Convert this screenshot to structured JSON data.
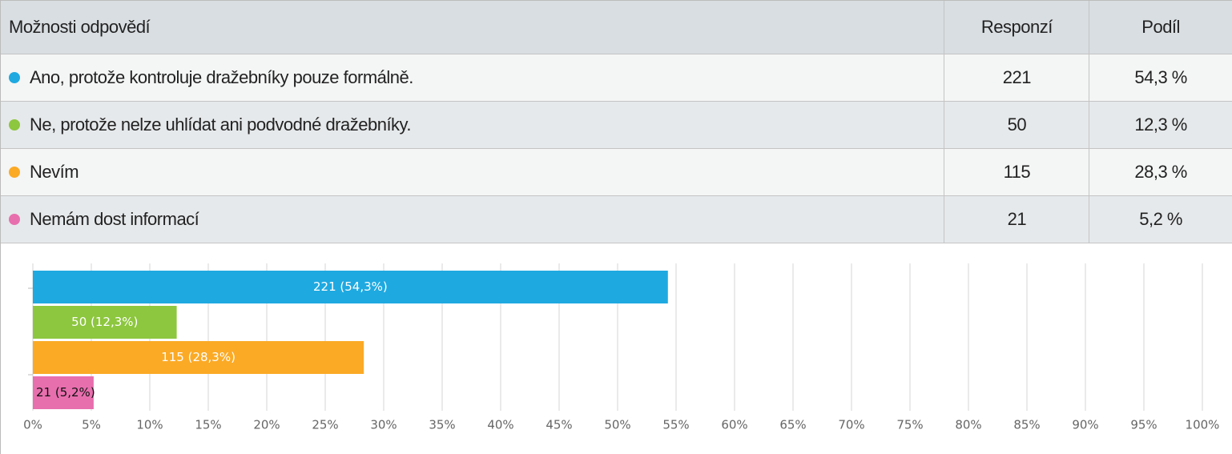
{
  "table": {
    "header": [
      "Možnosti odpovědí",
      "Responzí",
      "Podíl"
    ],
    "rows": [
      [
        "Ano, protože kontroluje dražebníky pouze formálně.",
        "221",
        "54,3 %"
      ],
      [
        "Ne, protože nelze uhlídat ani podvodné dražebníky.",
        "50",
        "12,3 %"
      ],
      [
        "Nevím",
        "115",
        "28,3 %"
      ],
      [
        "Nemám dost informací",
        "21",
        "5,2 %"
      ]
    ]
  },
  "chart_data": {
    "type": "bar",
    "orientation": "horizontal",
    "values": [
      54.3,
      12.3,
      28.3,
      5.2
    ],
    "value_labels": [
      "221 (54,3%)",
      "50 (12,3%)",
      "115 (28,3%)",
      "21 (5,2%)"
    ],
    "colors": [
      "#1ea9e1",
      "#8dc63f",
      "#fbaa26",
      "#e86fae"
    ],
    "xlim": [
      0,
      100
    ],
    "xticks": [
      {
        "value": 0,
        "label": "0%"
      },
      {
        "value": 5,
        "label": "5%"
      },
      {
        "value": 10,
        "label": "10%"
      },
      {
        "value": 15,
        "label": "15%"
      },
      {
        "value": 20,
        "label": "20%"
      },
      {
        "value": 25,
        "label": "25%"
      },
      {
        "value": 30,
        "label": "30%"
      },
      {
        "value": 35,
        "label": "35%"
      },
      {
        "value": 40,
        "label": "40%"
      },
      {
        "value": 45,
        "label": "45%"
      },
      {
        "value": 50,
        "label": "50%"
      },
      {
        "value": 55,
        "label": "55%"
      },
      {
        "value": 60,
        "label": "60%"
      },
      {
        "value": 65,
        "label": "65%"
      },
      {
        "value": 70,
        "label": "70%"
      },
      {
        "value": 75,
        "label": "75%"
      },
      {
        "value": 80,
        "label": "80%"
      },
      {
        "value": 85,
        "label": "85%"
      },
      {
        "value": 90,
        "label": "90%"
      },
      {
        "value": 95,
        "label": "95%"
      },
      {
        "value": 100,
        "label": "100%"
      }
    ],
    "grid": true
  }
}
